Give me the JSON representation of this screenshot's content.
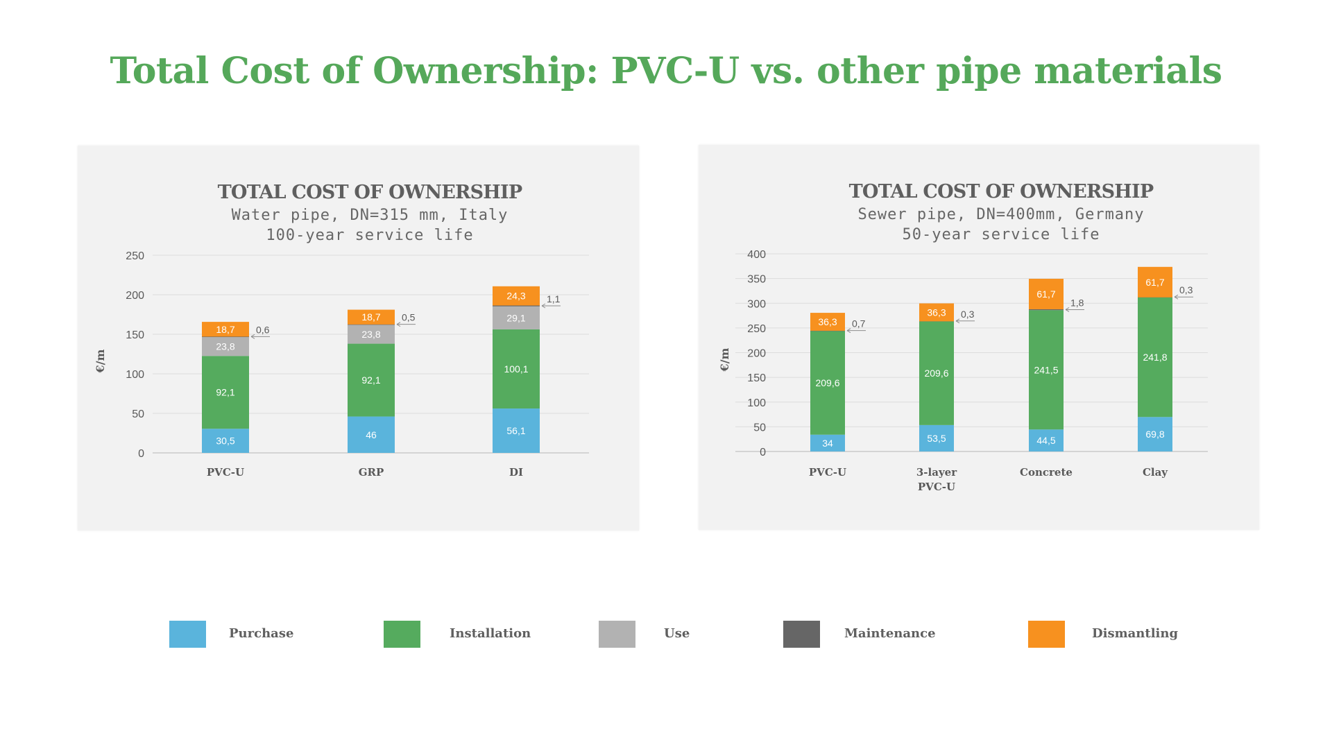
{
  "title": "Total Cost of Ownership: PVC-U vs. other pipe materials",
  "colors": {
    "Purchase": "#5ab4dc",
    "Installation": "#55ab5e",
    "Use": "#b2b2b2",
    "Maintenance": "#666666",
    "Dismantling": "#f7911f",
    "title": "#55a85a"
  },
  "legend": [
    "Purchase",
    "Installation",
    "Use",
    "Maintenance",
    "Dismantling"
  ],
  "chart_data": [
    {
      "type": "bar",
      "stacked": true,
      "title": "TOTAL COST OF OWNERSHIP",
      "subtitle": [
        "Water pipe, DN=315 mm, Italy",
        "100-year service life"
      ],
      "ylabel": "€/m",
      "ylim": [
        0,
        250
      ],
      "yticks": [
        0,
        50,
        100,
        150,
        200,
        250
      ],
      "grid": true,
      "categories": [
        "PVC-U",
        "GRP",
        "DI"
      ],
      "series": [
        {
          "name": "Purchase",
          "values": [
            30.5,
            46,
            56.1
          ],
          "labels": [
            "30,5",
            "46",
            "56,1"
          ]
        },
        {
          "name": "Installation",
          "values": [
            92.1,
            92.1,
            100.1
          ],
          "labels": [
            "92,1",
            "92,1",
            "100,1"
          ]
        },
        {
          "name": "Use",
          "values": [
            23.8,
            23.8,
            29.1
          ],
          "labels": [
            "23,8",
            "23,8",
            "29,1"
          ]
        },
        {
          "name": "Maintenance",
          "values": [
            0.6,
            0.5,
            1.1
          ],
          "labels": [
            "0,6",
            "0,5",
            "1,1"
          ]
        },
        {
          "name": "Dismantling",
          "values": [
            18.7,
            18.7,
            24.3
          ],
          "labels": [
            "18,7",
            "18,7",
            "24,3"
          ]
        }
      ]
    },
    {
      "type": "bar",
      "stacked": true,
      "title": "TOTAL COST OF OWNERSHIP",
      "subtitle": [
        "Sewer pipe, DN=400mm, Germany",
        "50-year service life"
      ],
      "ylabel": "€/m",
      "ylim": [
        0,
        400
      ],
      "yticks": [
        0,
        50,
        100,
        150,
        200,
        250,
        300,
        350,
        400
      ],
      "grid": true,
      "categories": [
        "PVC-U",
        "3-layer\nPVC-U",
        "Concrete",
        "Clay"
      ],
      "series": [
        {
          "name": "Purchase",
          "values": [
            34,
            53.5,
            44.5,
            69.8
          ],
          "labels": [
            "34",
            "53,5",
            "44,5",
            "69,8"
          ]
        },
        {
          "name": "Installation",
          "values": [
            209.6,
            209.6,
            241.5,
            241.8
          ],
          "labels": [
            "209,6",
            "209,6",
            "241,5",
            "241,8"
          ]
        },
        {
          "name": "Use",
          "values": [
            0,
            0,
            0,
            0
          ],
          "labels": [
            "",
            "",
            "",
            ""
          ]
        },
        {
          "name": "Maintenance",
          "values": [
            0.7,
            0.3,
            1.8,
            0.3
          ],
          "labels": [
            "0,7",
            "0,3",
            "1,8",
            "0,3"
          ]
        },
        {
          "name": "Dismantling",
          "values": [
            36.3,
            36.3,
            61.7,
            61.7
          ],
          "labels": [
            "36,3",
            "36,3",
            "61,7",
            "61,7"
          ]
        }
      ]
    }
  ]
}
